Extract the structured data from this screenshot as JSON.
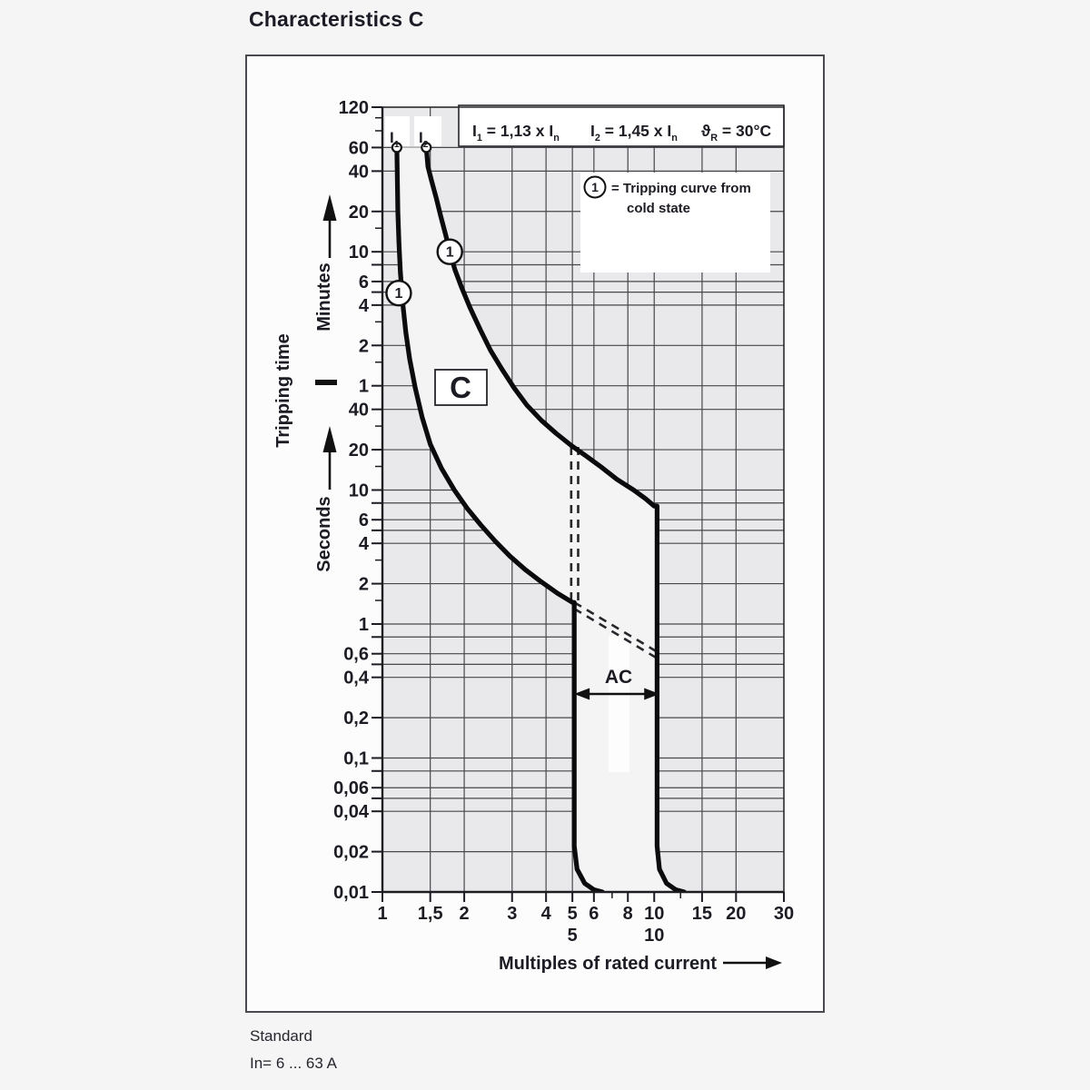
{
  "title": "Characteristics C",
  "footer": {
    "line1": "Standard",
    "line2": "In= 6 ... 63 A"
  },
  "chart_data": {
    "type": "line",
    "title": "Characteristics C",
    "x_axis": {
      "label": "Multiples of rated current",
      "scale": "log",
      "range": [
        1,
        30
      ],
      "ticks": [
        {
          "v": 1,
          "label": "1"
        },
        {
          "v": 1.5,
          "label": "1,5"
        },
        {
          "v": 2,
          "label": "2"
        },
        {
          "v": 3,
          "label": "3"
        },
        {
          "v": 4,
          "label": "4"
        },
        {
          "v": 5,
          "label": "5"
        },
        {
          "v": 6,
          "label": "6"
        },
        {
          "v": 8,
          "label": "8"
        },
        {
          "v": 10,
          "label": "10"
        },
        {
          "v": 15,
          "label": "15"
        },
        {
          "v": 20,
          "label": "20"
        },
        {
          "v": 30,
          "label": "30"
        }
      ],
      "minor_ticks": [
        7,
        12.5
      ],
      "secondary_labels": [
        {
          "v": 5,
          "label": "5"
        },
        {
          "v": 10,
          "label": "10"
        }
      ]
    },
    "y_axis": {
      "label": "Tripping time",
      "scale": "log",
      "range_seconds": [
        0.01,
        7200
      ],
      "units_upper": "Minutes",
      "units_lower": "Seconds",
      "minute_ticks": [
        {
          "v": 7200,
          "label": "120"
        },
        {
          "v": 3600,
          "label": "60"
        },
        {
          "v": 2400,
          "label": "40"
        },
        {
          "v": 1200,
          "label": "20"
        },
        {
          "v": 600,
          "label": "10"
        },
        {
          "v": 360,
          "label": "6"
        },
        {
          "v": 240,
          "label": "4"
        },
        {
          "v": 120,
          "label": "2"
        },
        {
          "v": 60,
          "label": "1"
        }
      ],
      "second_ticks": [
        {
          "v": 40,
          "label": "40"
        },
        {
          "v": 20,
          "label": "20"
        },
        {
          "v": 10,
          "label": "10"
        },
        {
          "v": 6,
          "label": "6"
        },
        {
          "v": 4,
          "label": "4"
        },
        {
          "v": 2,
          "label": "2"
        },
        {
          "v": 1,
          "label": "1"
        },
        {
          "v": 0.6,
          "label": "0,6"
        },
        {
          "v": 0.4,
          "label": "0,4"
        },
        {
          "v": 0.2,
          "label": "0,2"
        },
        {
          "v": 0.1,
          "label": "0,1"
        },
        {
          "v": 0.06,
          "label": "0,06"
        },
        {
          "v": 0.04,
          "label": "0,04"
        },
        {
          "v": 0.02,
          "label": "0,02"
        },
        {
          "v": 0.01,
          "label": "0,01"
        }
      ],
      "minor_tick_values": [
        6000,
        4800,
        900,
        180,
        90,
        30,
        15,
        3,
        1.5
      ]
    },
    "grid": {
      "h_values": [
        7200,
        3600,
        2400,
        1200,
        600,
        480,
        360,
        300,
        240,
        120,
        60,
        40,
        20,
        10,
        8,
        6,
        5,
        4,
        2,
        1,
        0.8,
        0.6,
        0.5,
        0.4,
        0.2,
        0.1,
        0.08,
        0.06,
        0.05,
        0.04,
        0.02,
        0.01
      ],
      "v_values": [
        1,
        1.5,
        2,
        3,
        4,
        5,
        6,
        8,
        10,
        15,
        20,
        30
      ]
    },
    "series": [
      {
        "name": "tripping-curve-lower-I1-cold",
        "points": [
          [
            1.13,
            3600
          ],
          [
            1.135,
            2000
          ],
          [
            1.14,
            1200
          ],
          [
            1.15,
            700
          ],
          [
            1.165,
            420
          ],
          [
            1.19,
            240
          ],
          [
            1.22,
            150
          ],
          [
            1.26,
            95
          ],
          [
            1.32,
            58
          ],
          [
            1.4,
            35
          ],
          [
            1.5,
            22
          ],
          [
            1.65,
            14.5
          ],
          [
            1.84,
            10
          ],
          [
            2.05,
            7.3
          ],
          [
            2.3,
            5.5
          ],
          [
            2.6,
            4.15
          ],
          [
            2.95,
            3.2
          ],
          [
            3.35,
            2.55
          ],
          [
            3.8,
            2.1
          ],
          [
            4.4,
            1.7
          ],
          [
            5.0,
            1.45
          ],
          [
            5.08,
            1.45
          ],
          [
            5.08,
            0.022
          ],
          [
            5.2,
            0.0148
          ],
          [
            5.55,
            0.0116
          ],
          [
            6.0,
            0.0104
          ],
          [
            6.45,
            0.01
          ]
        ]
      },
      {
        "name": "tripping-curve-upper-I2-cold",
        "points": [
          [
            1.45,
            3600
          ],
          [
            1.47,
            2600
          ],
          [
            1.52,
            2000
          ],
          [
            1.58,
            1500
          ],
          [
            1.64,
            1100
          ],
          [
            1.71,
            800
          ],
          [
            1.77,
            600
          ],
          [
            1.85,
            440
          ],
          [
            1.95,
            330
          ],
          [
            2.1,
            230
          ],
          [
            2.3,
            155
          ],
          [
            2.5,
            110
          ],
          [
            2.75,
            80
          ],
          [
            3.05,
            58
          ],
          [
            3.4,
            43
          ],
          [
            3.85,
            33
          ],
          [
            4.35,
            26.5
          ],
          [
            4.95,
            21.5
          ],
          [
            5.6,
            18
          ],
          [
            6.4,
            14.8
          ],
          [
            7.3,
            12
          ],
          [
            8.4,
            10
          ],
          [
            9.3,
            8.6
          ],
          [
            10.0,
            7.6
          ],
          [
            10.25,
            7.6
          ],
          [
            10.25,
            0.022
          ],
          [
            10.45,
            0.0148
          ],
          [
            11.1,
            0.0116
          ],
          [
            12.0,
            0.0104
          ],
          [
            12.9,
            0.01
          ]
        ]
      }
    ],
    "dashed_transition": {
      "verticals": [
        {
          "m": 4.95,
          "t1": 21,
          "t2": 1.5
        },
        {
          "m": 5.25,
          "t1": 21,
          "t2": 1.5
        }
      ],
      "diagonals": [
        {
          "from": [
            5.08,
            1.45
          ],
          "to": [
            10.25,
            0.62
          ]
        },
        {
          "from": [
            5.08,
            1.3
          ],
          "to": [
            10.25,
            0.555
          ]
        }
      ]
    },
    "markers": {
      "curve_start_points": [
        {
          "m": 1.13,
          "t": 3600
        },
        {
          "m": 1.45,
          "t": 3600
        }
      ],
      "numbered": [
        {
          "m": 1.148,
          "t": 295,
          "label": "1"
        },
        {
          "m": 1.77,
          "t": 600,
          "label": "1"
        }
      ]
    },
    "instantaneous_trip_range_multiples": [
      5,
      10
    ],
    "annotations": {
      "formula_1": "I~1~ = 1,13 x I~n~",
      "formula_2": "I~2~ = 1,45 x I~n~",
      "formula_3": "ϑ~R~ = 30°C",
      "curve_label_1": "I~1~",
      "curve_label_2": "I~2~",
      "legend_symbol": "1",
      "legend_line1": "= Tripping curve from",
      "legend_line2": "cold state",
      "band_label": "C",
      "ac_label": "AC",
      "ac_tilde": "~",
      "x_title": "Multiples of rated current",
      "y_title": "Tripping time",
      "y_units_upper": "Minutes",
      "y_units_lower": "Seconds"
    },
    "colors": {
      "page_bg": "#f5f5f6",
      "box_bg": "#fcfcfc",
      "plot_bg": "#e9e9eb",
      "band_fill": "#f4f4f5",
      "grid": "#47474d",
      "curve": "#0b0b0e",
      "text": "#1c1c24"
    }
  }
}
